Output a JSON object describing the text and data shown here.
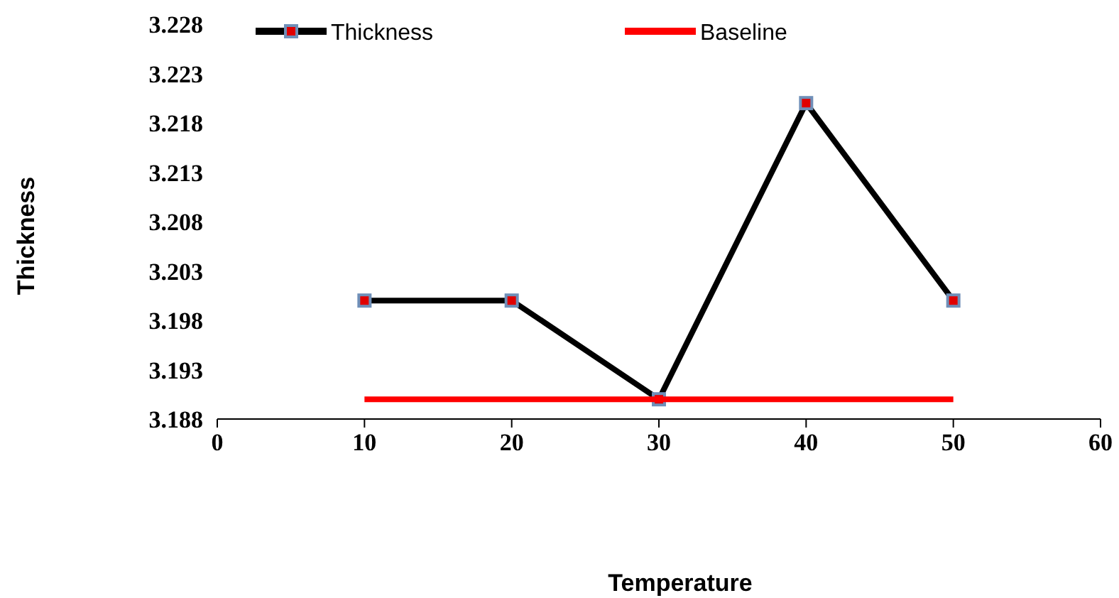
{
  "chart_data": {
    "type": "line",
    "xlabel": "Temperature",
    "ylabel": "Thickness",
    "x": [
      10,
      20,
      30,
      40,
      50
    ],
    "series": [
      {
        "name": "Thickness",
        "color": "#000000",
        "values": [
          3.2,
          3.2,
          3.19,
          3.22,
          3.2
        ],
        "marker": "square"
      },
      {
        "name": "Baseline",
        "color": "#ff0000",
        "values": [
          3.19,
          3.19,
          3.19,
          3.19,
          3.19
        ],
        "marker": "none"
      }
    ],
    "xlim": [
      0,
      60
    ],
    "xticks": [
      0,
      10,
      20,
      30,
      40,
      50,
      60
    ],
    "ylim": [
      3.188,
      3.228
    ],
    "yticks": [
      3.188,
      3.193,
      3.198,
      3.203,
      3.208,
      3.213,
      3.218,
      3.223,
      3.228
    ],
    "legend": "top",
    "grid": false,
    "line_style": "solid"
  }
}
